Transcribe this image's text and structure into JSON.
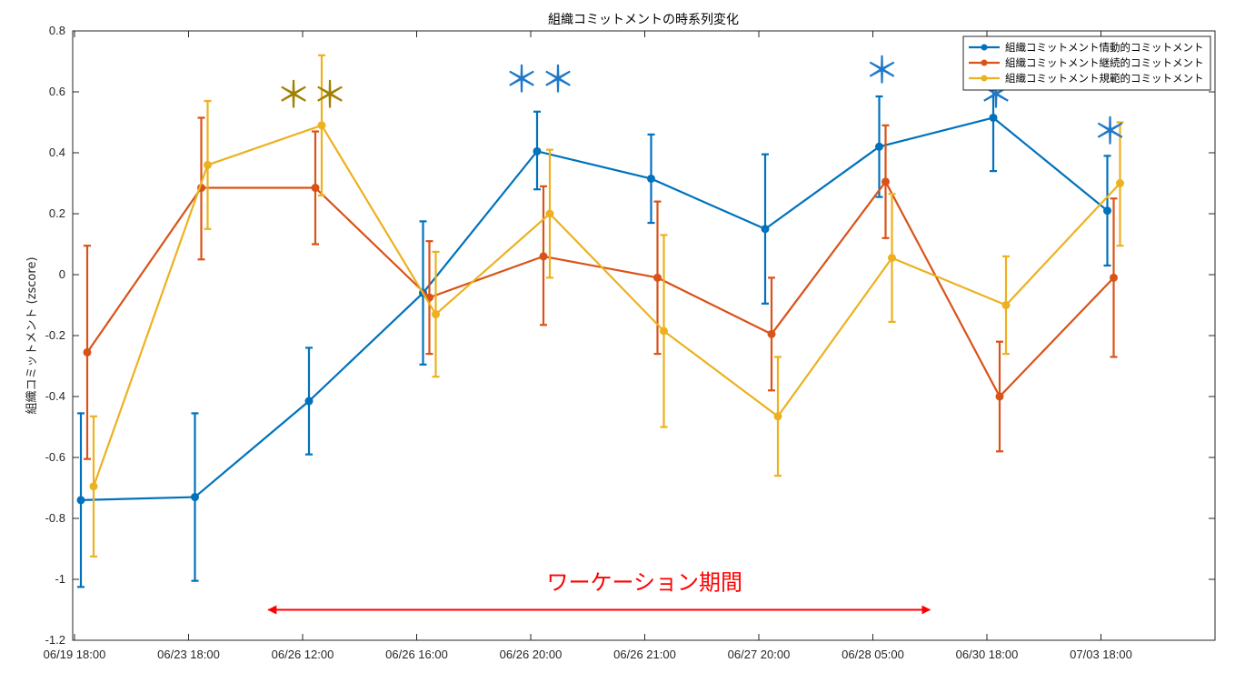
{
  "chart_data": {
    "type": "line",
    "title": "組織コミットメントの時系列変化",
    "xlabel": "",
    "ylabel": "組織コミットメント (zscore)",
    "ylim": [
      -1.2,
      0.8
    ],
    "yticks": [
      {
        "v": 0.8,
        "label": "0.8"
      },
      {
        "v": 0.6,
        "label": "0.6"
      },
      {
        "v": 0.4,
        "label": "0.4"
      },
      {
        "v": 0.2,
        "label": "0.2"
      },
      {
        "v": 0,
        "label": "0"
      },
      {
        "v": -0.2,
        "label": "-0.2"
      },
      {
        "v": -0.4,
        "label": "-0.4"
      },
      {
        "v": -0.6,
        "label": "-0.6"
      },
      {
        "v": -0.8,
        "label": "-0.8"
      },
      {
        "v": -1,
        "label": "-1"
      },
      {
        "v": -1.2,
        "label": "-1.2"
      }
    ],
    "categories": [
      "06/19 18:00",
      "06/23 18:00",
      "06/26 12:00",
      "06/26 16:00",
      "06/26 20:00",
      "06/26 21:00",
      "06/27 20:00",
      "06/28 05:00",
      "06/30 18:00",
      "07/03 18:00"
    ],
    "series": [
      {
        "name": "組織コミットメント情動的コミットメント",
        "color": "#0072BD",
        "offset": 0,
        "values": [
          -0.74,
          -0.73,
          -0.415,
          -0.06,
          0.405,
          0.315,
          0.15,
          0.42,
          0.515,
          0.21
        ],
        "lower": [
          -1.025,
          -1.005,
          -0.59,
          -0.295,
          0.28,
          0.17,
          -0.095,
          0.255,
          0.34,
          0.03
        ],
        "upper": [
          -0.455,
          -0.455,
          -0.24,
          0.175,
          0.535,
          0.46,
          0.395,
          0.585,
          0.69,
          0.39
        ]
      },
      {
        "name": "組織コミットメント継続的コミットメント",
        "color": "#D95319",
        "offset": 1,
        "values": [
          -0.255,
          0.285,
          0.285,
          -0.075,
          0.06,
          -0.01,
          -0.195,
          0.305,
          -0.4,
          -0.01
        ],
        "lower": [
          -0.605,
          0.05,
          0.1,
          -0.26,
          -0.165,
          -0.26,
          -0.38,
          0.12,
          -0.58,
          -0.27
        ],
        "upper": [
          0.095,
          0.515,
          0.47,
          0.11,
          0.29,
          0.24,
          -0.01,
          0.49,
          -0.22,
          0.25
        ]
      },
      {
        "name": "組織コミットメント規範的コミットメント",
        "color": "#EDB120",
        "offset": 2,
        "values": [
          -0.695,
          0.36,
          0.49,
          -0.13,
          0.2,
          -0.185,
          -0.465,
          0.055,
          -0.1,
          0.3
        ],
        "lower": [
          -0.925,
          0.15,
          0.26,
          -0.335,
          -0.01,
          -0.5,
          -0.66,
          -0.155,
          -0.26,
          0.095
        ],
        "upper": [
          -0.465,
          0.57,
          0.72,
          0.075,
          0.41,
          0.13,
          -0.27,
          0.265,
          0.06,
          0.5
        ]
      }
    ],
    "legend_position": "top-right",
    "annotations": [
      {
        "text": "＊＊",
        "color": "#A08000",
        "x_index": 2,
        "y": 0.55
      },
      {
        "text": "＊＊",
        "color": "#1E78C8",
        "x_index": 4,
        "y": 0.6
      },
      {
        "text": "＊",
        "color": "#1E78C8",
        "x_index": 7,
        "y": 0.63
      },
      {
        "text": "＊",
        "color": "#1E78C8",
        "x_index": 8,
        "y": 0.55
      },
      {
        "text": "＊",
        "color": "#1E78C8",
        "x_index": 9,
        "y": 0.43
      }
    ],
    "period": {
      "label": "ワーケーション期間",
      "from_index": 1.7,
      "to_index": 7.5,
      "y": -1.1,
      "color": "#ff0000"
    }
  }
}
